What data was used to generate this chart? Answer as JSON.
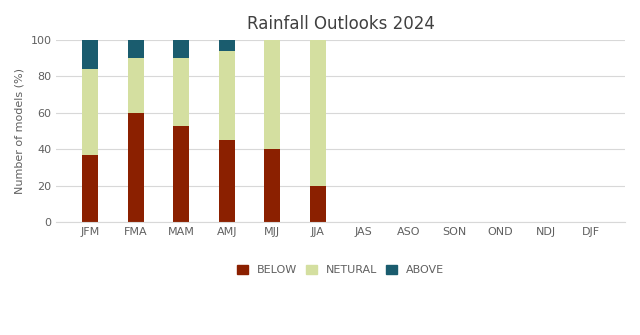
{
  "title": "Rainfall Outlooks 2024",
  "ylabel": "Number of models (%)",
  "categories": [
    "JFM",
    "FMA",
    "MAM",
    "AMJ",
    "MJJ",
    "JJA",
    "JAS",
    "ASO",
    "SON",
    "OND",
    "NDJ",
    "DJF"
  ],
  "below": [
    37,
    60,
    53,
    45,
    40,
    20,
    0,
    0,
    0,
    0,
    0,
    0
  ],
  "neutral": [
    47,
    30,
    37,
    49,
    60,
    80,
    0,
    0,
    0,
    0,
    0,
    0
  ],
  "above": [
    16,
    10,
    10,
    6,
    0,
    0,
    0,
    0,
    0,
    0,
    0,
    0
  ],
  "color_below": "#8B2000",
  "color_neutral": "#D4DFA0",
  "color_above": "#1A5C6E",
  "ylim": [
    0,
    100
  ],
  "yticks": [
    0,
    20,
    40,
    60,
    80,
    100
  ],
  "legend_labels": [
    "BELOW",
    "NETURAL",
    "ABOVE"
  ],
  "background_color": "#ffffff",
  "grid_color": "#d8d8d8",
  "title_fontsize": 12,
  "label_fontsize": 8,
  "tick_fontsize": 8,
  "bar_width": 0.35
}
